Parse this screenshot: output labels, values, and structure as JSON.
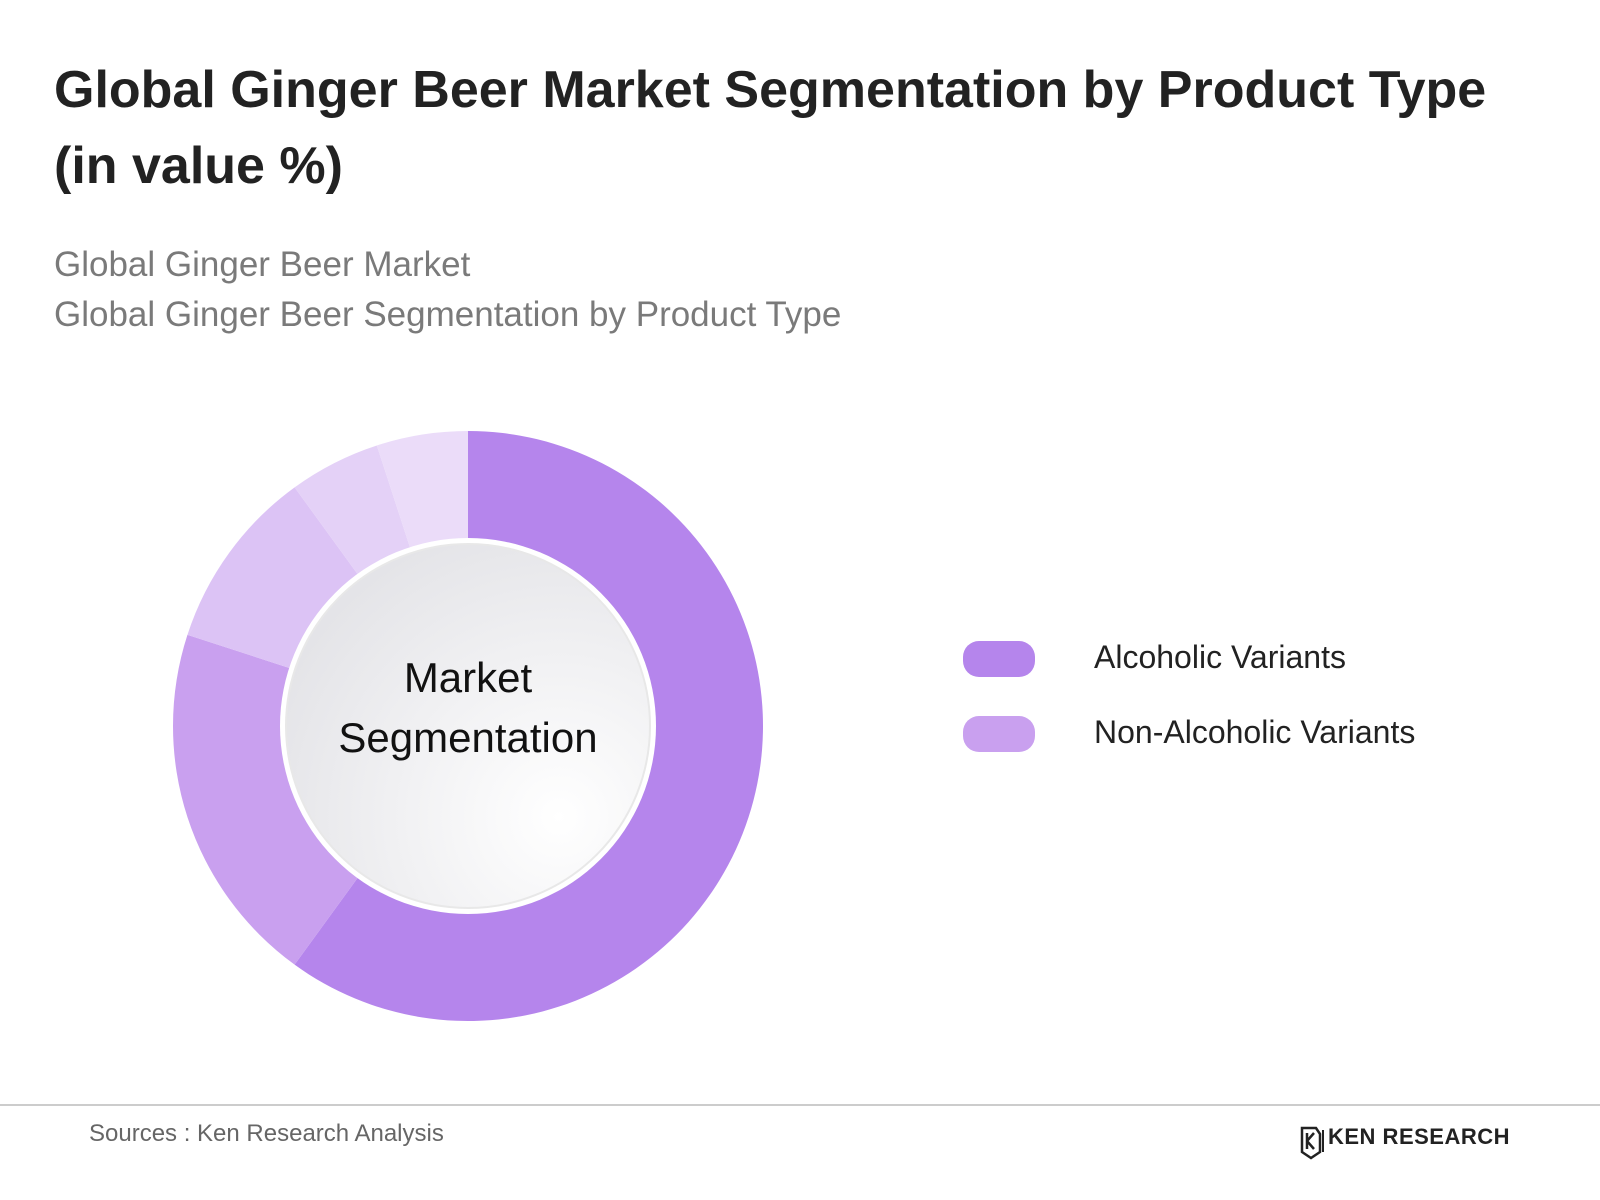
{
  "chart_data": {
    "type": "donut",
    "title": "Global Ginger Beer Market Segmentation by Product Type (in value %)",
    "subtitle": [
      "Global Ginger Beer Market",
      "Global Ginger Beer Segmentation by Product Type"
    ],
    "center_label": "Market Segmentation",
    "categories": [
      "Alcoholic Variants",
      "Non-Alcoholic Variants",
      null,
      null,
      null
    ],
    "values": [
      60,
      20,
      10,
      5,
      5
    ],
    "colors": [
      "#b585ec",
      "#c9a0ef",
      "#dcc3f5",
      "#e4d1f7",
      "#ebdcf9"
    ]
  },
  "footer": {
    "source": "Sources : Ken Research Analysis",
    "brand": "KEN RESEARCH"
  }
}
